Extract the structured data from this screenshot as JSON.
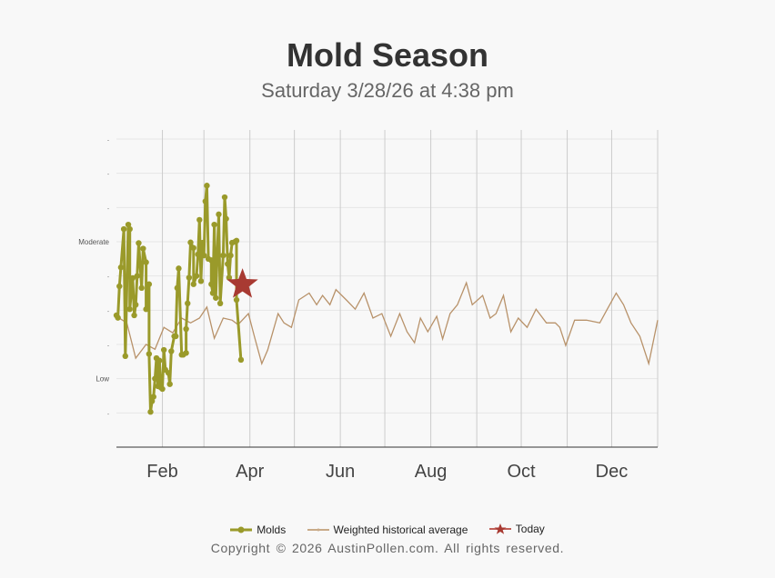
{
  "title": "Mold Season",
  "subtitle": "Saturday 3/28/26 at 4:38 pm",
  "copyright": "Copyright © 2026 AustinPollen.com.  All rights reserved.",
  "colors": {
    "molds": "#9a9a2a",
    "average": "#b8926a",
    "today": "#a83a32"
  },
  "chart_data": {
    "type": "line",
    "title": "Mold Season",
    "xlabel": "",
    "ylabel": "",
    "xlim": [
      0,
      365
    ],
    "ylim": [
      0,
      9
    ],
    "x_unit": "day of year",
    "month_gridlines": [
      31,
      59,
      90,
      120,
      151,
      181,
      212,
      243,
      273,
      304,
      334,
      365
    ],
    "x_ticks": [
      {
        "day": 31,
        "label": "Feb"
      },
      {
        "day": 90,
        "label": "Apr"
      },
      {
        "day": 151,
        "label": "Jun"
      },
      {
        "day": 212,
        "label": "Aug"
      },
      {
        "day": 273,
        "label": "Oct"
      },
      {
        "day": 334,
        "label": "Dec"
      }
    ],
    "y_ticks": [
      {
        "v": 1,
        "label": "-"
      },
      {
        "v": 2,
        "label": "Low"
      },
      {
        "v": 3,
        "label": "-"
      },
      {
        "v": 4,
        "label": "-"
      },
      {
        "v": 5,
        "label": "-"
      },
      {
        "v": 6,
        "label": "Moderate"
      },
      {
        "v": 7,
        "label": "-"
      },
      {
        "v": 8,
        "label": "-"
      },
      {
        "v": 9,
        "label": "-"
      }
    ],
    "legend": {
      "position": "bottom",
      "entries": [
        "Molds",
        "Weighted historical average",
        "Today"
      ]
    },
    "series": [
      {
        "name": "Molds",
        "points": [
          [
            0,
            3.85
          ],
          [
            1,
            3.78
          ],
          [
            2,
            4.7
          ],
          [
            3,
            5.25
          ],
          [
            5,
            6.37
          ],
          [
            6,
            2.66
          ],
          [
            8,
            6.5
          ],
          [
            9,
            6.37
          ],
          [
            9,
            4.03
          ],
          [
            11,
            4.94
          ],
          [
            12,
            3.85
          ],
          [
            13,
            4.16
          ],
          [
            14,
            5.0
          ],
          [
            15,
            5.96
          ],
          [
            17,
            4.65
          ],
          [
            18,
            5.8
          ],
          [
            20,
            5.4
          ],
          [
            20,
            4.03
          ],
          [
            22,
            4.76
          ],
          [
            22,
            2.72
          ],
          [
            23,
            1.03
          ],
          [
            24,
            1.34
          ],
          [
            25,
            1.47
          ],
          [
            26,
            2.0
          ],
          [
            27,
            2.6
          ],
          [
            28,
            1.78
          ],
          [
            29,
            2.53
          ],
          [
            30,
            1.74
          ],
          [
            31,
            1.7
          ],
          [
            32,
            2.84
          ],
          [
            33,
            2.26
          ],
          [
            35,
            2.17
          ],
          [
            36,
            1.84
          ],
          [
            37,
            2.8
          ],
          [
            39,
            3.24
          ],
          [
            40,
            3.24
          ],
          [
            41,
            4.65
          ],
          [
            42,
            5.22
          ],
          [
            44,
            2.7
          ],
          [
            45,
            2.7
          ],
          [
            47,
            2.75
          ],
          [
            47,
            3.45
          ],
          [
            48,
            4.2
          ],
          [
            49,
            4.95
          ],
          [
            50,
            5.98
          ],
          [
            52,
            5.82
          ],
          [
            52,
            4.76
          ],
          [
            54,
            5.0
          ],
          [
            55,
            5.63
          ],
          [
            56,
            6.64
          ],
          [
            57,
            4.85
          ],
          [
            58,
            5.97
          ],
          [
            59,
            5.6
          ],
          [
            60,
            7.18
          ],
          [
            61,
            7.64
          ],
          [
            62,
            5.5
          ],
          [
            64,
            5.46
          ],
          [
            64,
            4.76
          ],
          [
            65,
            4.5
          ],
          [
            66,
            6.5
          ],
          [
            67,
            4.36
          ],
          [
            68,
            5.6
          ],
          [
            69,
            6.8
          ],
          [
            70,
            4.2
          ],
          [
            72,
            5.6
          ],
          [
            73,
            7.3
          ],
          [
            74,
            6.67
          ],
          [
            75,
            5.35
          ],
          [
            76,
            4.95
          ],
          [
            77,
            5.6
          ],
          [
            78,
            5.97
          ],
          [
            80,
            6.0
          ],
          [
            81,
            6.03
          ],
          [
            81,
            4.3
          ],
          [
            84,
            2.55
          ]
        ]
      },
      {
        "name": "Weighted historical average",
        "points": [
          [
            0,
            3.82
          ],
          [
            7,
            3.63
          ],
          [
            13,
            2.6
          ],
          [
            20,
            3.0
          ],
          [
            26,
            2.86
          ],
          [
            32,
            3.5
          ],
          [
            38,
            3.34
          ],
          [
            44,
            3.77
          ],
          [
            50,
            3.63
          ],
          [
            56,
            3.77
          ],
          [
            61,
            4.09
          ],
          [
            66,
            3.18
          ],
          [
            72,
            3.77
          ],
          [
            78,
            3.71
          ],
          [
            82,
            3.58
          ],
          [
            89,
            3.9
          ],
          [
            93,
            3.24
          ],
          [
            98,
            2.44
          ],
          [
            102,
            2.84
          ],
          [
            109,
            3.9
          ],
          [
            113,
            3.63
          ],
          [
            118,
            3.5
          ],
          [
            123,
            4.3
          ],
          [
            130,
            4.5
          ],
          [
            135,
            4.16
          ],
          [
            139,
            4.43
          ],
          [
            144,
            4.16
          ],
          [
            148,
            4.6
          ],
          [
            155,
            4.3
          ],
          [
            161,
            4.03
          ],
          [
            167,
            4.5
          ],
          [
            173,
            3.77
          ],
          [
            179,
            3.9
          ],
          [
            185,
            3.24
          ],
          [
            191,
            3.9
          ],
          [
            196,
            3.37
          ],
          [
            201,
            3.05
          ],
          [
            205,
            3.77
          ],
          [
            210,
            3.37
          ],
          [
            216,
            3.82
          ],
          [
            220,
            3.16
          ],
          [
            225,
            3.9
          ],
          [
            230,
            4.16
          ],
          [
            236,
            4.8
          ],
          [
            240,
            4.16
          ],
          [
            247,
            4.43
          ],
          [
            252,
            3.77
          ],
          [
            256,
            3.9
          ],
          [
            261,
            4.43
          ],
          [
            266,
            3.37
          ],
          [
            271,
            3.77
          ],
          [
            277,
            3.5
          ],
          [
            283,
            4.03
          ],
          [
            290,
            3.63
          ],
          [
            296,
            3.63
          ],
          [
            299,
            3.5
          ],
          [
            303,
            2.97
          ],
          [
            309,
            3.71
          ],
          [
            317,
            3.71
          ],
          [
            326,
            3.63
          ],
          [
            331,
            4.03
          ],
          [
            337,
            4.5
          ],
          [
            342,
            4.16
          ],
          [
            347,
            3.63
          ],
          [
            353,
            3.24
          ],
          [
            359,
            2.44
          ],
          [
            365,
            3.71
          ]
        ]
      },
      {
        "name": "Today",
        "points": [
          [
            85,
            4.75
          ]
        ]
      }
    ]
  }
}
